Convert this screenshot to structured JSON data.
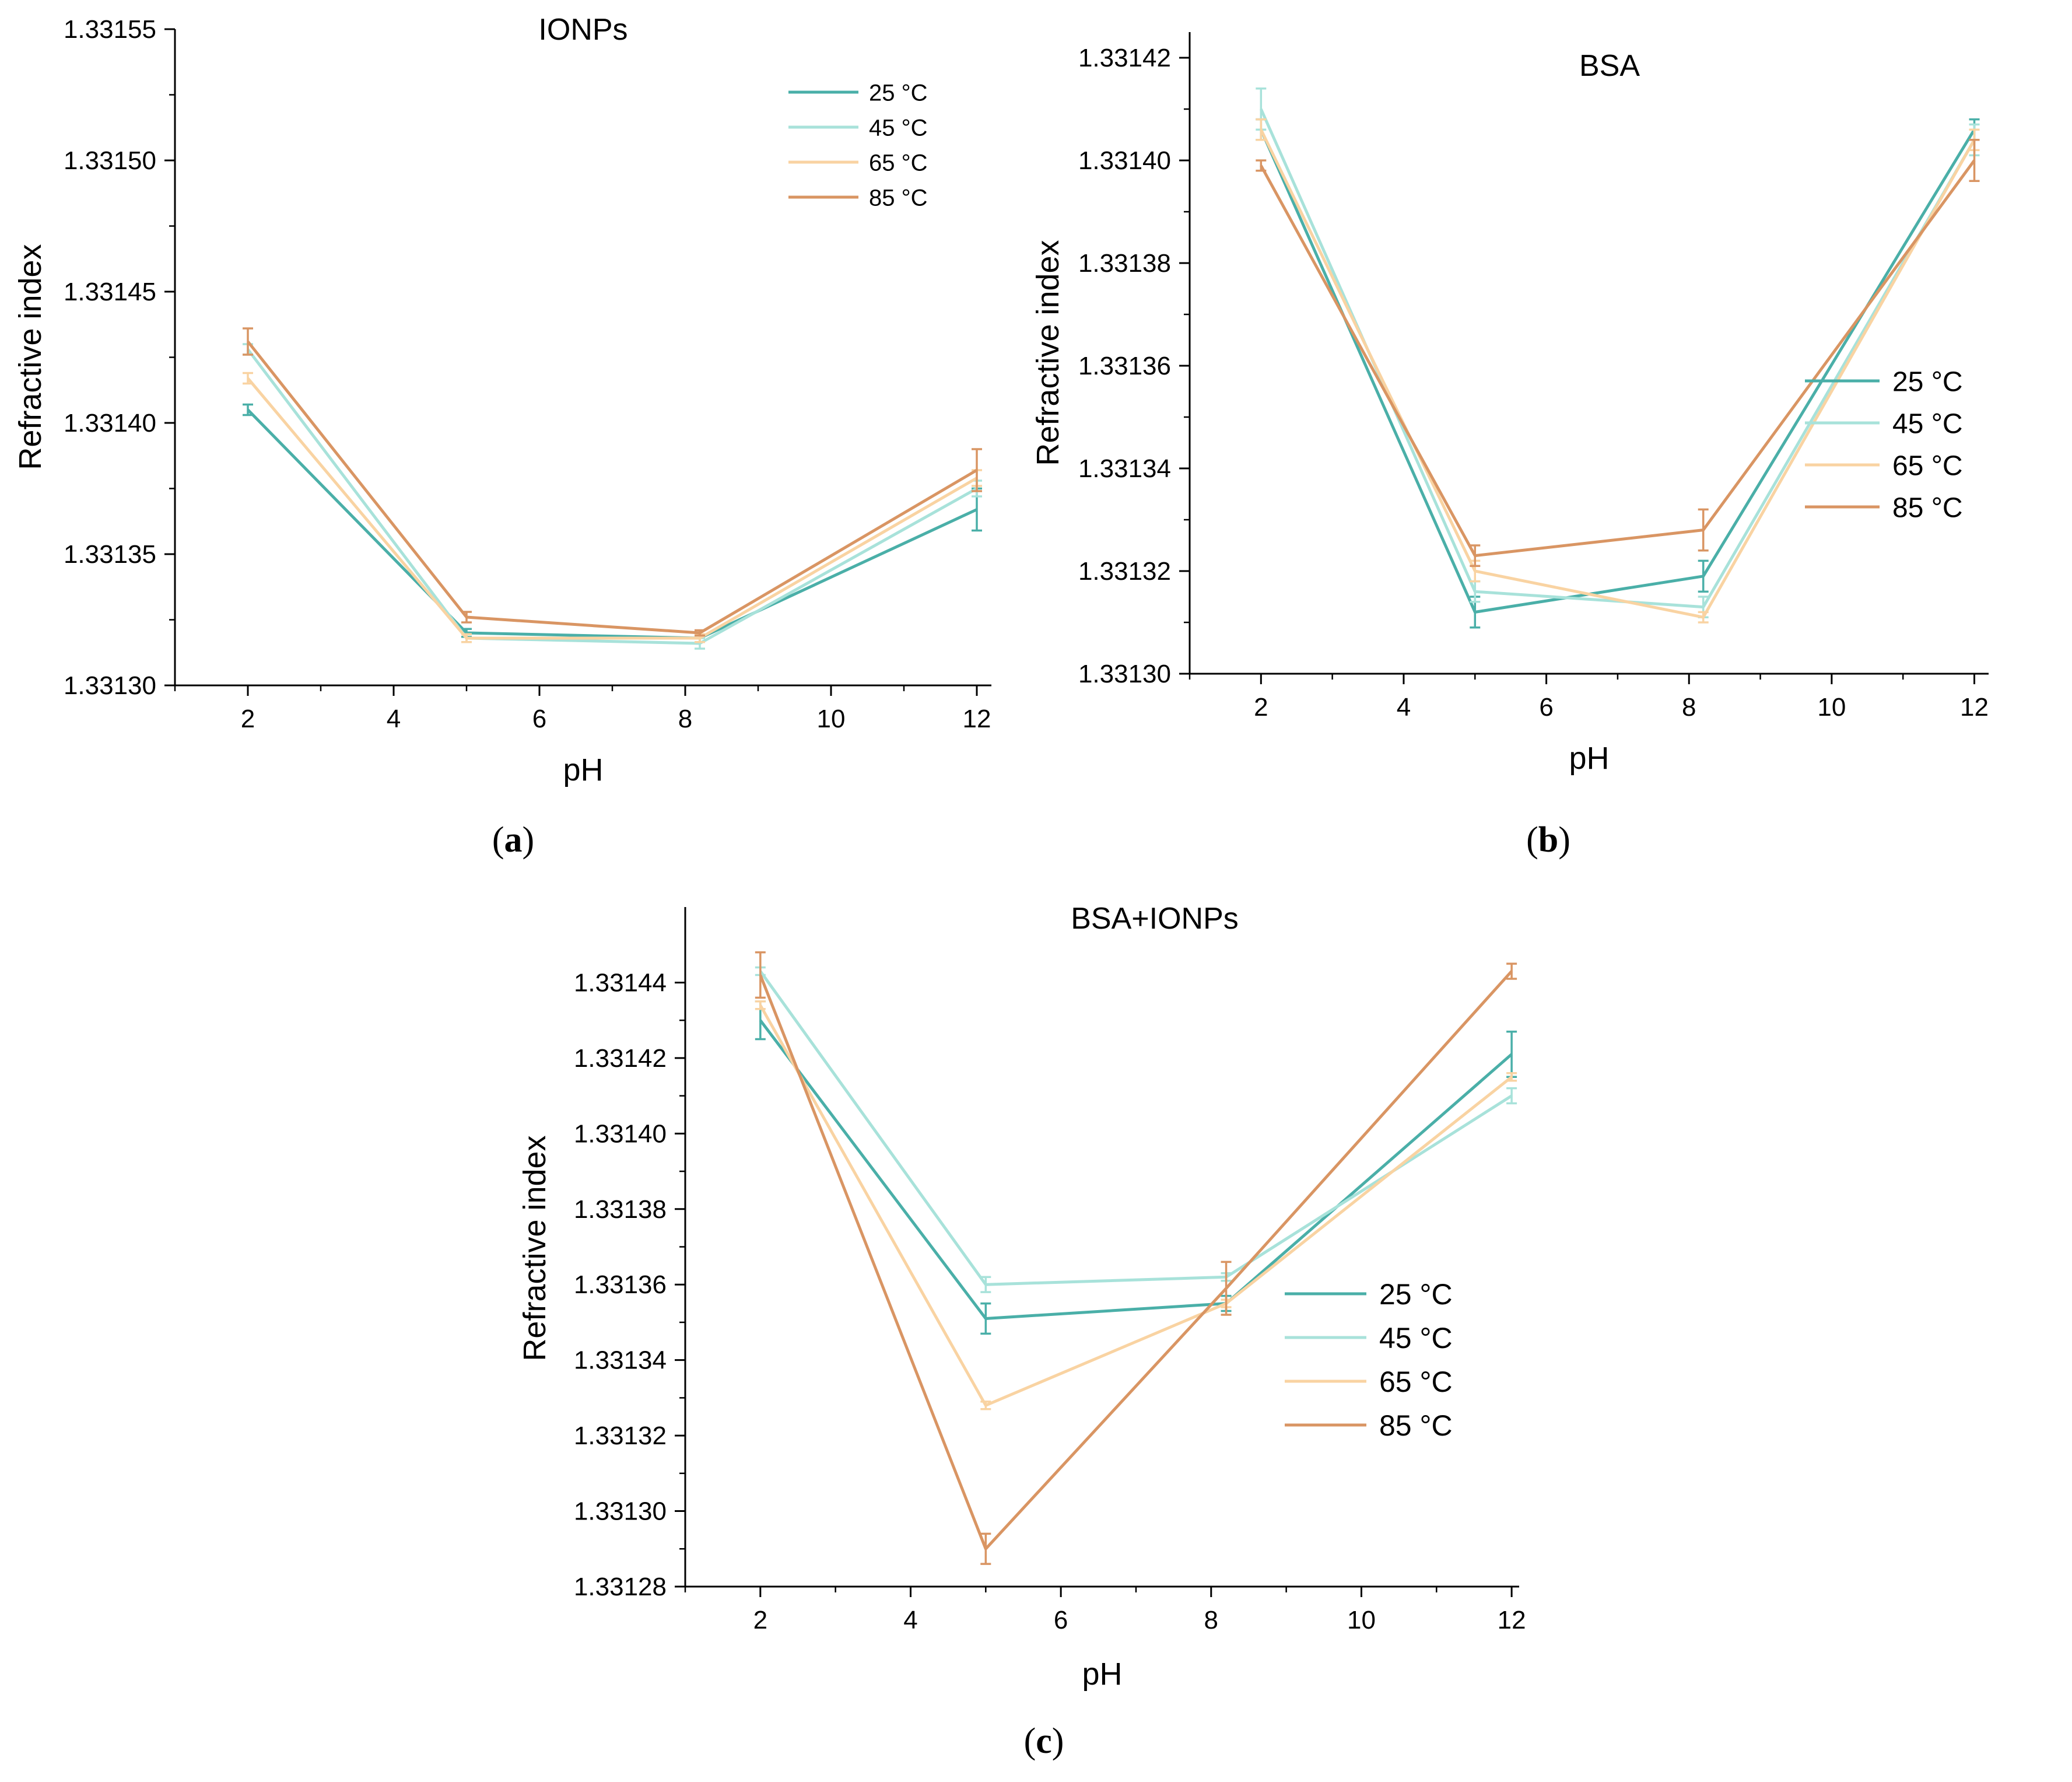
{
  "colors": {
    "25": "#4AAFA8",
    "45": "#A8E2DA",
    "65": "#F9D3A2",
    "85": "#D99563"
  },
  "chart_data": [
    {
      "id": "a",
      "type": "line",
      "title": "IONPs",
      "caption_letter": "a",
      "xlabel": "pH",
      "ylabel": "Refractive index",
      "xlim": [
        1,
        12.2
      ],
      "ylim": [
        1.3313,
        1.33155
      ],
      "x_ticks": [
        "2",
        "4",
        "6",
        "8",
        "10",
        "12"
      ],
      "y_ticks": [
        "1.33130",
        "1.33135",
        "1.33140",
        "1.33145",
        "1.33150",
        "1.33155"
      ],
      "x": [
        2,
        5,
        8.2,
        12
      ],
      "legend_position": "top-right",
      "series": [
        {
          "name": "25 °C",
          "color_key": "25",
          "values": [
            1.331405,
            1.33132,
            1.331318,
            1.331367
          ],
          "errors": [
            2e-06,
            1.5e-06,
            1.5e-06,
            8e-06
          ]
        },
        {
          "name": "45 °C",
          "color_key": "45",
          "values": [
            1.331428,
            1.331318,
            1.331316,
            1.331375
          ],
          "errors": [
            2e-06,
            1.5e-06,
            2e-06,
            3e-06
          ]
        },
        {
          "name": "65 °C",
          "color_key": "65",
          "values": [
            1.331417,
            1.331318,
            1.331318,
            1.331379
          ],
          "errors": [
            2e-06,
            1.5e-06,
            1.5e-06,
            3e-06
          ]
        },
        {
          "name": "85 °C",
          "color_key": "85",
          "values": [
            1.331431,
            1.331326,
            1.33132,
            1.331382
          ],
          "errors": [
            5e-06,
            2e-06,
            1e-06,
            8e-06
          ]
        }
      ]
    },
    {
      "id": "b",
      "type": "line",
      "title": "BSA",
      "caption_letter": "b",
      "xlabel": "pH",
      "ylabel": "Refractive index",
      "xlim": [
        1,
        12.2
      ],
      "ylim": [
        1.3313,
        1.331425
      ],
      "x_ticks": [
        "2",
        "4",
        "6",
        "8",
        "10",
        "12"
      ],
      "y_ticks": [
        "1.33130",
        "1.33132",
        "1.33134",
        "1.33136",
        "1.33138",
        "1.33140",
        "1.33142"
      ],
      "x": [
        2,
        5,
        8.2,
        12
      ],
      "legend_position": "center-right",
      "series": [
        {
          "name": "25 °C",
          "color_key": "25",
          "values": [
            1.331406,
            1.331312,
            1.331319,
            1.331406
          ],
          "errors": [
            2e-06,
            3e-06,
            3e-06,
            2e-06
          ]
        },
        {
          "name": "45 °C",
          "color_key": "45",
          "values": [
            1.33141,
            1.331316,
            1.331313,
            1.331404
          ],
          "errors": [
            4e-06,
            2e-06,
            2e-06,
            3e-06
          ]
        },
        {
          "name": "65 °C",
          "color_key": "65",
          "values": [
            1.331406,
            1.33132,
            1.331311,
            1.331404
          ],
          "errors": [
            2e-06,
            2e-06,
            1e-06,
            2e-06
          ]
        },
        {
          "name": "85 °C",
          "color_key": "85",
          "values": [
            1.331399,
            1.331323,
            1.331328,
            1.3314
          ],
          "errors": [
            1e-06,
            2e-06,
            4e-06,
            4e-06
          ]
        }
      ]
    },
    {
      "id": "c",
      "type": "line",
      "title": "BSA+IONPs",
      "caption_letter": "c",
      "xlabel": "pH",
      "ylabel": "Refractive index",
      "xlim": [
        1,
        12.1
      ],
      "ylim": [
        1.33128,
        1.33146
      ],
      "x_ticks": [
        "2",
        "4",
        "6",
        "8",
        "10",
        "12"
      ],
      "y_ticks": [
        "1.33128",
        "1.33130",
        "1.33132",
        "1.33134",
        "1.33136",
        "1.33138",
        "1.33140",
        "1.33142",
        "1.33144"
      ],
      "x": [
        2,
        5,
        8.2,
        12
      ],
      "legend_position": "center-right",
      "series": [
        {
          "name": "25 °C",
          "color_key": "25",
          "values": [
            1.33143,
            1.331351,
            1.331355,
            1.331421
          ],
          "errors": [
            5e-06,
            4e-06,
            2e-06,
            6e-06
          ]
        },
        {
          "name": "45 °C",
          "color_key": "45",
          "values": [
            1.331443,
            1.33136,
            1.331362,
            1.33141
          ],
          "errors": [
            1e-06,
            2e-06,
            1e-06,
            2e-06
          ]
        },
        {
          "name": "65 °C",
          "color_key": "65",
          "values": [
            1.331434,
            1.331328,
            1.331355,
            1.331415
          ],
          "errors": [
            1e-06,
            1e-06,
            1e-06,
            1e-06
          ]
        },
        {
          "name": "85 °C",
          "color_key": "85",
          "values": [
            1.331442,
            1.33129,
            1.331359,
            1.331443
          ],
          "errors": [
            6e-06,
            4e-06,
            7e-06,
            2e-06
          ]
        }
      ]
    }
  ]
}
